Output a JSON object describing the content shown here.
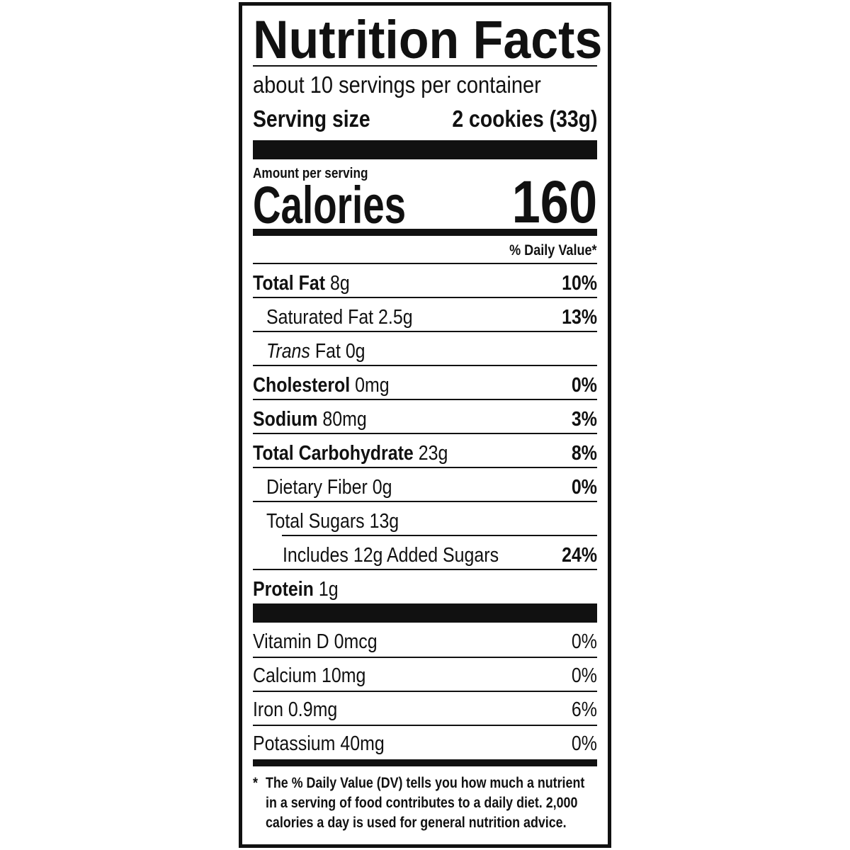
{
  "header": {
    "title": "Nutrition Facts",
    "servings": "about 10 servings per container",
    "serving_size_label": "Serving size",
    "serving_size": "2 cookies (33g)"
  },
  "calories": {
    "caption": "Amount per serving",
    "label": "Calories",
    "value": "160"
  },
  "dv_heading": "% Daily Value*",
  "nutrients": [
    {
      "label": "Total Fat",
      "amount": "8g",
      "dv": "10%"
    },
    {
      "label": "Saturated Fat",
      "amount": "2.5g",
      "dv": "13%"
    },
    {
      "label_italic": "Trans",
      "label": "Fat",
      "amount": "0g"
    },
    {
      "label": "Cholesterol",
      "amount": "0mg",
      "dv": "0%"
    },
    {
      "label": "Sodium",
      "amount": "80mg",
      "dv": "3%"
    },
    {
      "label": "Total Carbohydrate",
      "amount": "23g",
      "dv": "8%"
    },
    {
      "label": "Dietary Fiber",
      "amount": "0g",
      "dv": "0%"
    },
    {
      "label": "Total Sugars",
      "amount": "13g"
    },
    {
      "label": "Includes 12g Added Sugars",
      "dv": "24%"
    },
    {
      "label": "Protein",
      "amount": "1g"
    }
  ],
  "vitamins": [
    {
      "label": "Vitamin D",
      "amount": "0mcg",
      "dv": "0%"
    },
    {
      "label": "Calcium",
      "amount": "10mg",
      "dv": "0%"
    },
    {
      "label": "Iron",
      "amount": "0.9mg",
      "dv": "6%"
    },
    {
      "label": "Potassium",
      "amount": "40mg",
      "dv": "0%"
    }
  ],
  "footnote": {
    "mark": "*",
    "lines": [
      "The % Daily Value (DV) tells you how much a nutrient",
      "in a serving of food contributes to a daily diet. 2,000",
      "calories a day is used for general nutrition advice."
    ]
  }
}
